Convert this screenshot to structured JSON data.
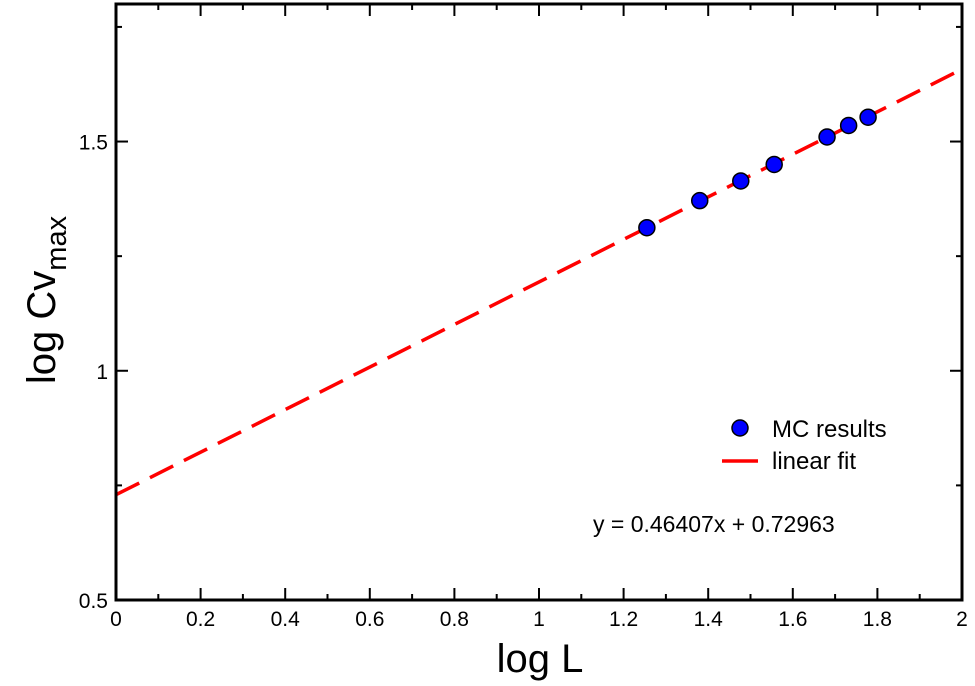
{
  "chart_data": {
    "type": "scatter",
    "xlabel": "log L",
    "ylabel_main": "log Cv",
    "ylabel_sub": "max",
    "xlim": [
      0,
      2
    ],
    "ylim": [
      0.5,
      1.8
    ],
    "x_ticks": [
      0,
      0.2,
      0.4,
      0.6,
      0.8,
      1,
      1.2,
      1.4,
      1.6,
      1.8,
      2
    ],
    "x_tick_labels": [
      "0",
      "0.2",
      "0.4",
      "0.6",
      "0.8",
      "1",
      "1.2",
      "1.4",
      "1.6",
      "1.8",
      "2"
    ],
    "y_ticks": [
      0.5,
      1,
      1.5
    ],
    "y_tick_labels": [
      "0.5",
      "1",
      "1.5"
    ],
    "grid": false,
    "legend_position": "bottom-right",
    "series": [
      {
        "name": "MC results",
        "type": "scatter",
        "color": "#0000ff",
        "x": [
          1.255,
          1.38,
          1.477,
          1.556,
          1.681,
          1.732,
          1.778
        ],
        "y": [
          1.312,
          1.371,
          1.414,
          1.45,
          1.51,
          1.535,
          1.553
        ]
      },
      {
        "name": "linear fit",
        "type": "line",
        "style": "dashed",
        "color": "#ff0000",
        "slope": 0.46407,
        "intercept": 0.72963
      }
    ],
    "annotation": "y = 0.46407x + 0.72963"
  }
}
